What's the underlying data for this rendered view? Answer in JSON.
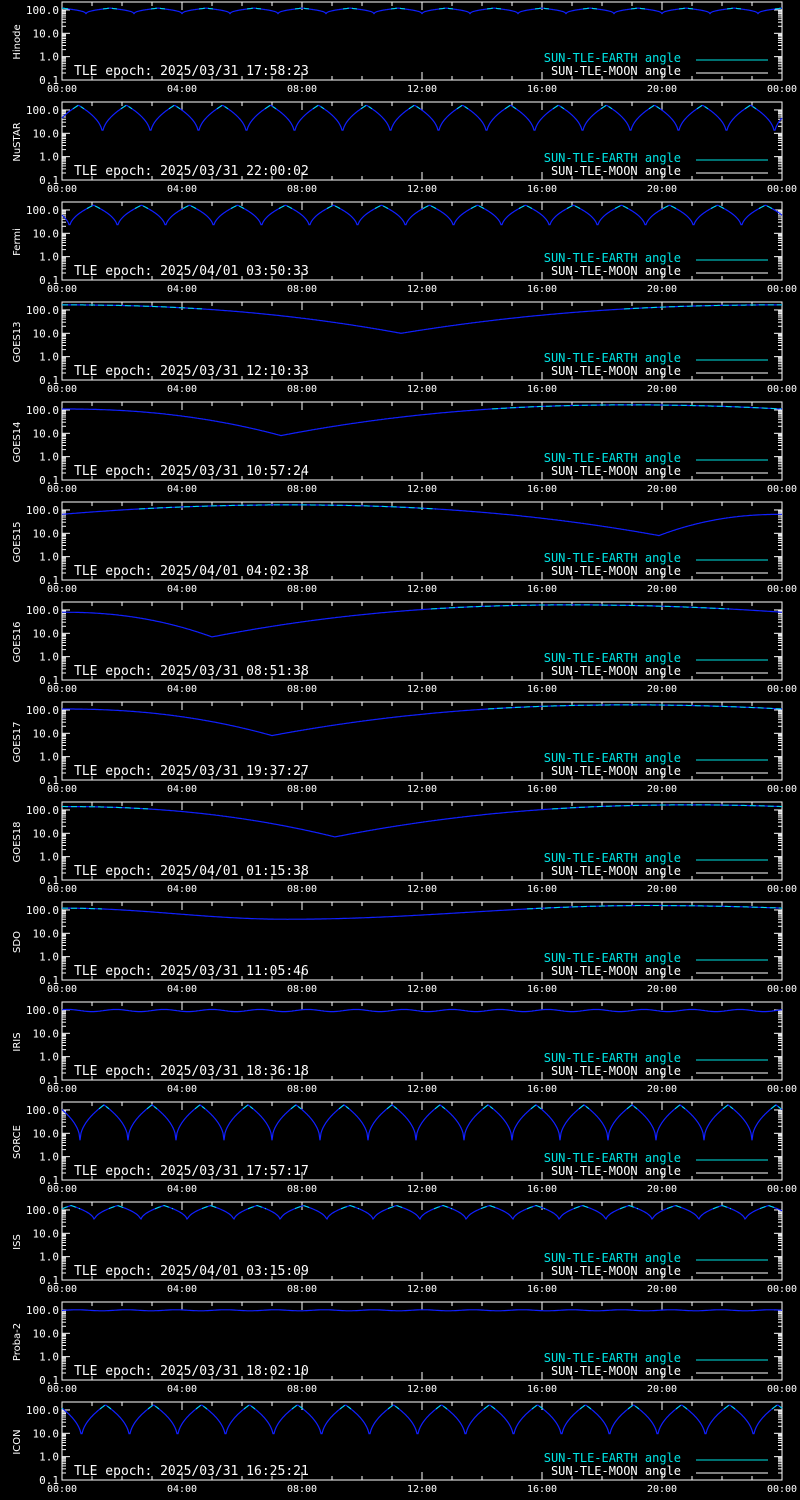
{
  "legend": {
    "earth_label": "SUN-TLE-EARTH angle",
    "moon_label": "SUN-TLE-MOON angle"
  },
  "colors": {
    "background": "#000000",
    "axes": "#ffffff",
    "earth_line": "#00e5e5",
    "moon_line": "#ffffff",
    "curve": "#1020ff"
  },
  "x_tick_labels": [
    "00:00",
    "04:00",
    "08:00",
    "12:00",
    "16:00",
    "20:00",
    "00:00"
  ],
  "y_tick_labels": [
    "100.0",
    "10.0",
    "1.0",
    "0.1"
  ],
  "chart_data": [
    {
      "type": "line",
      "name": "Hinode",
      "epoch_text": "TLE epoch: 2025/03/31 17:58:23",
      "y_scale": "log",
      "ylim": [
        0.1,
        180
      ],
      "xlim": [
        0,
        24
      ],
      "pattern": "periodic",
      "period": 1.6,
      "phase": 0.0,
      "min": 70,
      "max": 120,
      "cusp": true
    },
    {
      "type": "line",
      "name": "NuSTAR",
      "epoch_text": "TLE epoch: 2025/03/31 22:00:02",
      "y_scale": "log",
      "ylim": [
        0.1,
        180
      ],
      "xlim": [
        0,
        24
      ],
      "pattern": "periodic",
      "period": 1.6,
      "phase": 0.55,
      "min": 9,
      "max": 160,
      "cusp": true
    },
    {
      "type": "line",
      "name": "Fermi",
      "epoch_text": "TLE epoch: 2025/04/01 03:50:33",
      "y_scale": "log",
      "ylim": [
        0.1,
        180
      ],
      "xlim": [
        0,
        24
      ],
      "pattern": "periodic",
      "period": 1.6,
      "phase": 1.05,
      "min": 17,
      "max": 160,
      "cusp": true
    },
    {
      "type": "line",
      "name": "GOES13",
      "epoch_text": "TLE epoch: 2025/03/31 12:10:33",
      "y_scale": "log",
      "ylim": [
        0.1,
        180
      ],
      "xlim": [
        0,
        24
      ],
      "pattern": "vdip",
      "center": 11.3,
      "min": 10,
      "start": 165,
      "end": 165
    },
    {
      "type": "line",
      "name": "GOES14",
      "epoch_text": "TLE epoch: 2025/03/31 10:57:24",
      "y_scale": "log",
      "ylim": [
        0.1,
        180
      ],
      "xlim": [
        0,
        24
      ],
      "pattern": "vdip",
      "center": 7.3,
      "min": 8,
      "start": 110,
      "end": 110,
      "peak_at": 19,
      "peak": 165
    },
    {
      "type": "line",
      "name": "GOES15",
      "epoch_text": "TLE epoch: 2025/04/01 04:02:38",
      "y_scale": "log",
      "ylim": [
        0.1,
        180
      ],
      "xlim": [
        0,
        24
      ],
      "pattern": "vdip",
      "center": 19.9,
      "min": 8,
      "start": 65,
      "end": 65,
      "peak_at": 7.5,
      "peak": 165
    },
    {
      "type": "line",
      "name": "GOES16",
      "epoch_text": "TLE epoch: 2025/03/31 08:51:38",
      "y_scale": "log",
      "ylim": [
        0.1,
        180
      ],
      "xlim": [
        0,
        24
      ],
      "pattern": "vdip",
      "center": 5.0,
      "min": 7,
      "start": 80,
      "end": 80,
      "peak_at": 17,
      "peak": 165
    },
    {
      "type": "line",
      "name": "GOES17",
      "epoch_text": "TLE epoch: 2025/03/31 19:37:27",
      "y_scale": "log",
      "ylim": [
        0.1,
        180
      ],
      "xlim": [
        0,
        24
      ],
      "pattern": "vdip",
      "center": 7.0,
      "min": 8,
      "start": 110,
      "end": 110,
      "peak_at": 19,
      "peak": 165
    },
    {
      "type": "line",
      "name": "GOES18",
      "epoch_text": "TLE epoch: 2025/04/01 01:15:38",
      "y_scale": "log",
      "ylim": [
        0.1,
        180
      ],
      "xlim": [
        0,
        24
      ],
      "pattern": "vdip",
      "center": 9.1,
      "min": 7,
      "start": 140,
      "end": 140,
      "peak_at": 21,
      "peak": 165
    },
    {
      "type": "line",
      "name": "SDO",
      "epoch_text": "TLE epoch: 2025/03/31 11:05:46",
      "y_scale": "log",
      "ylim": [
        0.1,
        180
      ],
      "xlim": [
        0,
        24
      ],
      "pattern": "smooth",
      "center": 7.5,
      "min": 40,
      "start": 120,
      "end": 120,
      "peak_at": 19.5,
      "peak": 155
    },
    {
      "type": "line",
      "name": "IRIS",
      "epoch_text": "TLE epoch: 2025/03/31 18:36:18",
      "y_scale": "log",
      "ylim": [
        0.1,
        180
      ],
      "xlim": [
        0,
        24
      ],
      "pattern": "periodic",
      "period": 1.6,
      "phase": 0.2,
      "min": 85,
      "max": 105,
      "cusp": false
    },
    {
      "type": "line",
      "name": "SORCE",
      "epoch_text": "TLE epoch: 2025/03/31 17:57:17",
      "y_scale": "log",
      "ylim": [
        0.1,
        180
      ],
      "xlim": [
        0,
        24
      ],
      "pattern": "periodic",
      "period": 1.6,
      "phase": 1.4,
      "min": 5,
      "max": 165,
      "cusp": true
    },
    {
      "type": "line",
      "name": "ISS",
      "epoch_text": "TLE epoch: 2025/04/01 03:15:09",
      "y_scale": "log",
      "ylim": [
        0.1,
        180
      ],
      "xlim": [
        0,
        24
      ],
      "pattern": "periodic",
      "period": 1.55,
      "phase": 0.3,
      "min": 35,
      "max": 155,
      "cusp": true
    },
    {
      "type": "line",
      "name": "Proba-2",
      "epoch_text": "TLE epoch: 2025/03/31 18:02:10",
      "y_scale": "log",
      "ylim": [
        0.1,
        180
      ],
      "xlim": [
        0,
        24
      ],
      "pattern": "periodic",
      "period": 1.65,
      "phase": 0.5,
      "min": 92,
      "max": 102,
      "cusp": false
    },
    {
      "type": "line",
      "name": "ICON",
      "epoch_text": "TLE epoch: 2025/03/31 16:25:21",
      "y_scale": "log",
      "ylim": [
        0.1,
        180
      ],
      "xlim": [
        0,
        24
      ],
      "pattern": "periodic",
      "period": 1.6,
      "phase": 1.45,
      "min": 6,
      "max": 165,
      "cusp": true
    }
  ]
}
